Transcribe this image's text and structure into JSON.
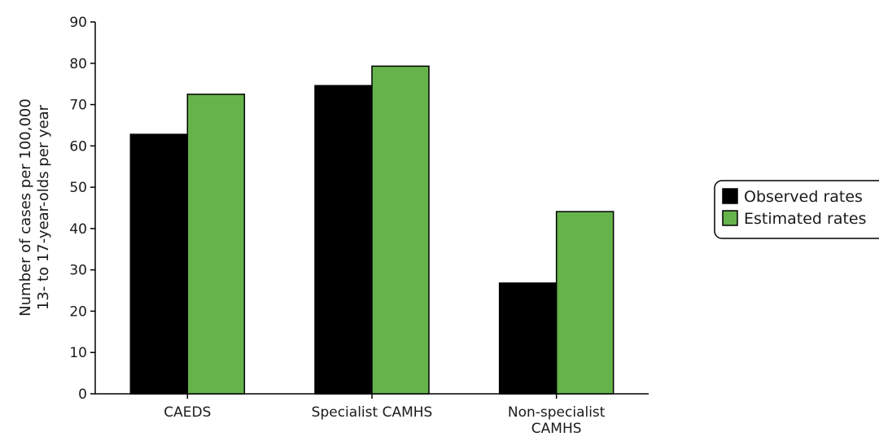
{
  "chart_data": {
    "type": "bar",
    "title": "",
    "xlabel": "",
    "ylabel_lines": [
      "Number of cases per 100,000",
      "13- to 17-year-olds per year"
    ],
    "ylim": [
      0,
      90
    ],
    "yticks": [
      0,
      10,
      20,
      30,
      40,
      50,
      60,
      70,
      80,
      90
    ],
    "categories": [
      [
        "CAEDS"
      ],
      [
        "Specialist CAMHS"
      ],
      [
        "Non-specialist",
        "CAMHS"
      ]
    ],
    "series": [
      {
        "name": "Observed rates",
        "color": "#000000",
        "values": [
          62.8,
          74.6,
          26.8
        ]
      },
      {
        "name": "Estimated rates",
        "color": "#66b34b",
        "values": [
          72.5,
          79.3,
          44.1
        ]
      }
    ],
    "grid": false,
    "legend_position": "right"
  }
}
